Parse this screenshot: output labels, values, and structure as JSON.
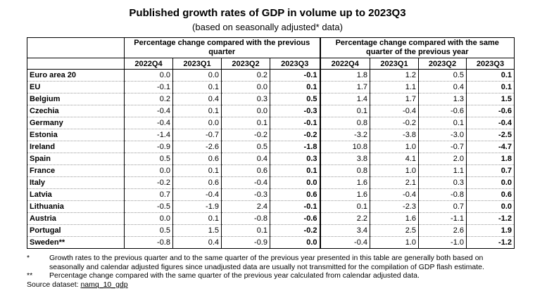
{
  "title": "Published growth rates of GDP in volume up to 2023Q3",
  "subtitle": "(based on seasonally adjusted* data)",
  "group_headers": {
    "prev_quarter": "Percentage change compared with the previous quarter",
    "prev_year": "Percentage change compared with the same quarter of the previous year"
  },
  "quarters": [
    "2022Q4",
    "2023Q1",
    "2023Q2",
    "2023Q3",
    "2022Q4",
    "2023Q1",
    "2023Q2",
    "2023Q3"
  ],
  "rows": [
    {
      "country": "Euro area 20",
      "q": [
        "0.0",
        "0.0",
        "0.2",
        "-0.1"
      ],
      "y": [
        "1.8",
        "1.2",
        "0.5",
        "0.1"
      ]
    },
    {
      "country": "EU",
      "q": [
        "-0.1",
        "0.1",
        "0.0",
        "0.1"
      ],
      "y": [
        "1.7",
        "1.1",
        "0.4",
        "0.1"
      ]
    },
    {
      "country": "Belgium",
      "q": [
        "0.2",
        "0.4",
        "0.3",
        "0.5"
      ],
      "y": [
        "1.4",
        "1.7",
        "1.3",
        "1.5"
      ]
    },
    {
      "country": "Czechia",
      "q": [
        "-0.4",
        "0.1",
        "0.0",
        "-0.3"
      ],
      "y": [
        "0.1",
        "-0.4",
        "-0.6",
        "-0.6"
      ]
    },
    {
      "country": "Germany",
      "q": [
        "-0.4",
        "0.0",
        "0.1",
        "-0.1"
      ],
      "y": [
        "0.8",
        "-0.2",
        "0.1",
        "-0.4"
      ]
    },
    {
      "country": "Estonia",
      "q": [
        "-1.4",
        "-0.7",
        "-0.2",
        "-0.2"
      ],
      "y": [
        "-3.2",
        "-3.8",
        "-3.0",
        "-2.5"
      ]
    },
    {
      "country": "Ireland",
      "q": [
        "-0.9",
        "-2.6",
        "0.5",
        "-1.8"
      ],
      "y": [
        "10.8",
        "1.0",
        "-0.7",
        "-4.7"
      ]
    },
    {
      "country": "Spain",
      "q": [
        "0.5",
        "0.6",
        "0.4",
        "0.3"
      ],
      "y": [
        "3.8",
        "4.1",
        "2.0",
        "1.8"
      ]
    },
    {
      "country": "France",
      "q": [
        "0.0",
        "0.1",
        "0.6",
        "0.1"
      ],
      "y": [
        "0.8",
        "1.0",
        "1.1",
        "0.7"
      ]
    },
    {
      "country": "Italy",
      "q": [
        "-0.2",
        "0.6",
        "-0.4",
        "0.0"
      ],
      "y": [
        "1.6",
        "2.1",
        "0.3",
        "0.0"
      ]
    },
    {
      "country": "Latvia",
      "q": [
        "0.7",
        "-0.4",
        "-0.3",
        "0.6"
      ],
      "y": [
        "1.6",
        "-0.4",
        "-0.8",
        "0.6"
      ]
    },
    {
      "country": "Lithuania",
      "q": [
        "-0.5",
        "-1.9",
        "2.4",
        "-0.1"
      ],
      "y": [
        "0.1",
        "-2.3",
        "0.7",
        "0.0"
      ]
    },
    {
      "country": "Austria",
      "q": [
        "0.0",
        "0.1",
        "-0.8",
        "-0.6"
      ],
      "y": [
        "2.2",
        "1.6",
        "-1.1",
        "-1.2"
      ]
    },
    {
      "country": "Portugal",
      "q": [
        "0.5",
        "1.5",
        "0.1",
        "-0.2"
      ],
      "y": [
        "3.4",
        "2.5",
        "2.6",
        "1.9"
      ]
    },
    {
      "country": "Sweden**",
      "q": [
        "-0.8",
        "0.4",
        "-0.9",
        "0.0"
      ],
      "y": [
        "-0.4",
        "1.0",
        "-1.0",
        "-1.2"
      ]
    }
  ],
  "notes": [
    {
      "mark": "*",
      "text": "Growth rates to the previous quarter and to the same quarter of the previous year presented in this table are generally both based on seasonally and calendar adjusted figures since unadjusted data are usually not transmitted for the compilation of GDP flash estimate."
    },
    {
      "mark": "**",
      "text": "Percentage change compared with the same quarter of the previous year calculated from calendar adjusted data."
    }
  ],
  "source": {
    "label": "Source dataset:",
    "link": "namq_10_gdp"
  }
}
